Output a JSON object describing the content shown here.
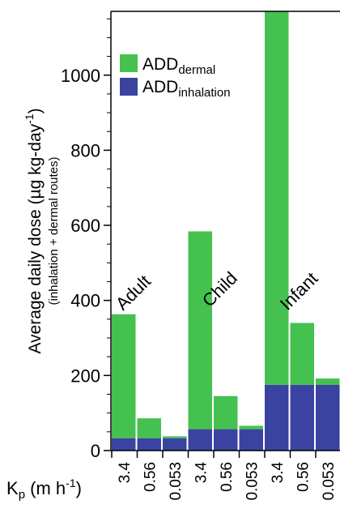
{
  "chart_data": {
    "type": "bar",
    "stacked": true,
    "ylim": [
      0,
      1170
    ],
    "yticks": [
      0,
      200,
      400,
      600,
      800,
      1000
    ],
    "ylabel": {
      "line1_main": "Average daily dose (µg kg-day",
      "line1_sup": "-1",
      "line1_end": ")",
      "line2": "(inhalation + dermal routes)"
    },
    "xlabel": {
      "main": "K",
      "sub": "p",
      "mid": " (m h",
      "sup": "-1",
      "end": ")"
    },
    "groups": [
      {
        "label": "Adult",
        "categories": [
          "3.4",
          "0.56",
          "0.053"
        ]
      },
      {
        "label": "Child",
        "categories": [
          "3.4",
          "0.56",
          "0.053"
        ]
      },
      {
        "label": "Infant",
        "categories": [
          "3.4",
          "0.56",
          "0.053"
        ]
      }
    ],
    "categories": [
      "3.4",
      "0.56",
      "0.053",
      "3.4",
      "0.56",
      "0.053",
      "3.4",
      "0.56",
      "0.053"
    ],
    "series": [
      {
        "name": "ADD",
        "name_sub": "inhalation",
        "color": "#3b43a0",
        "values": [
          33,
          33,
          33,
          57,
          57,
          57,
          175,
          175,
          175
        ]
      },
      {
        "name": "ADD",
        "name_sub": "dermal",
        "color": "#45c150",
        "values": [
          330,
          53,
          5,
          527,
          88,
          9,
          995,
          165,
          17
        ]
      }
    ],
    "legend_position": "top-left"
  }
}
